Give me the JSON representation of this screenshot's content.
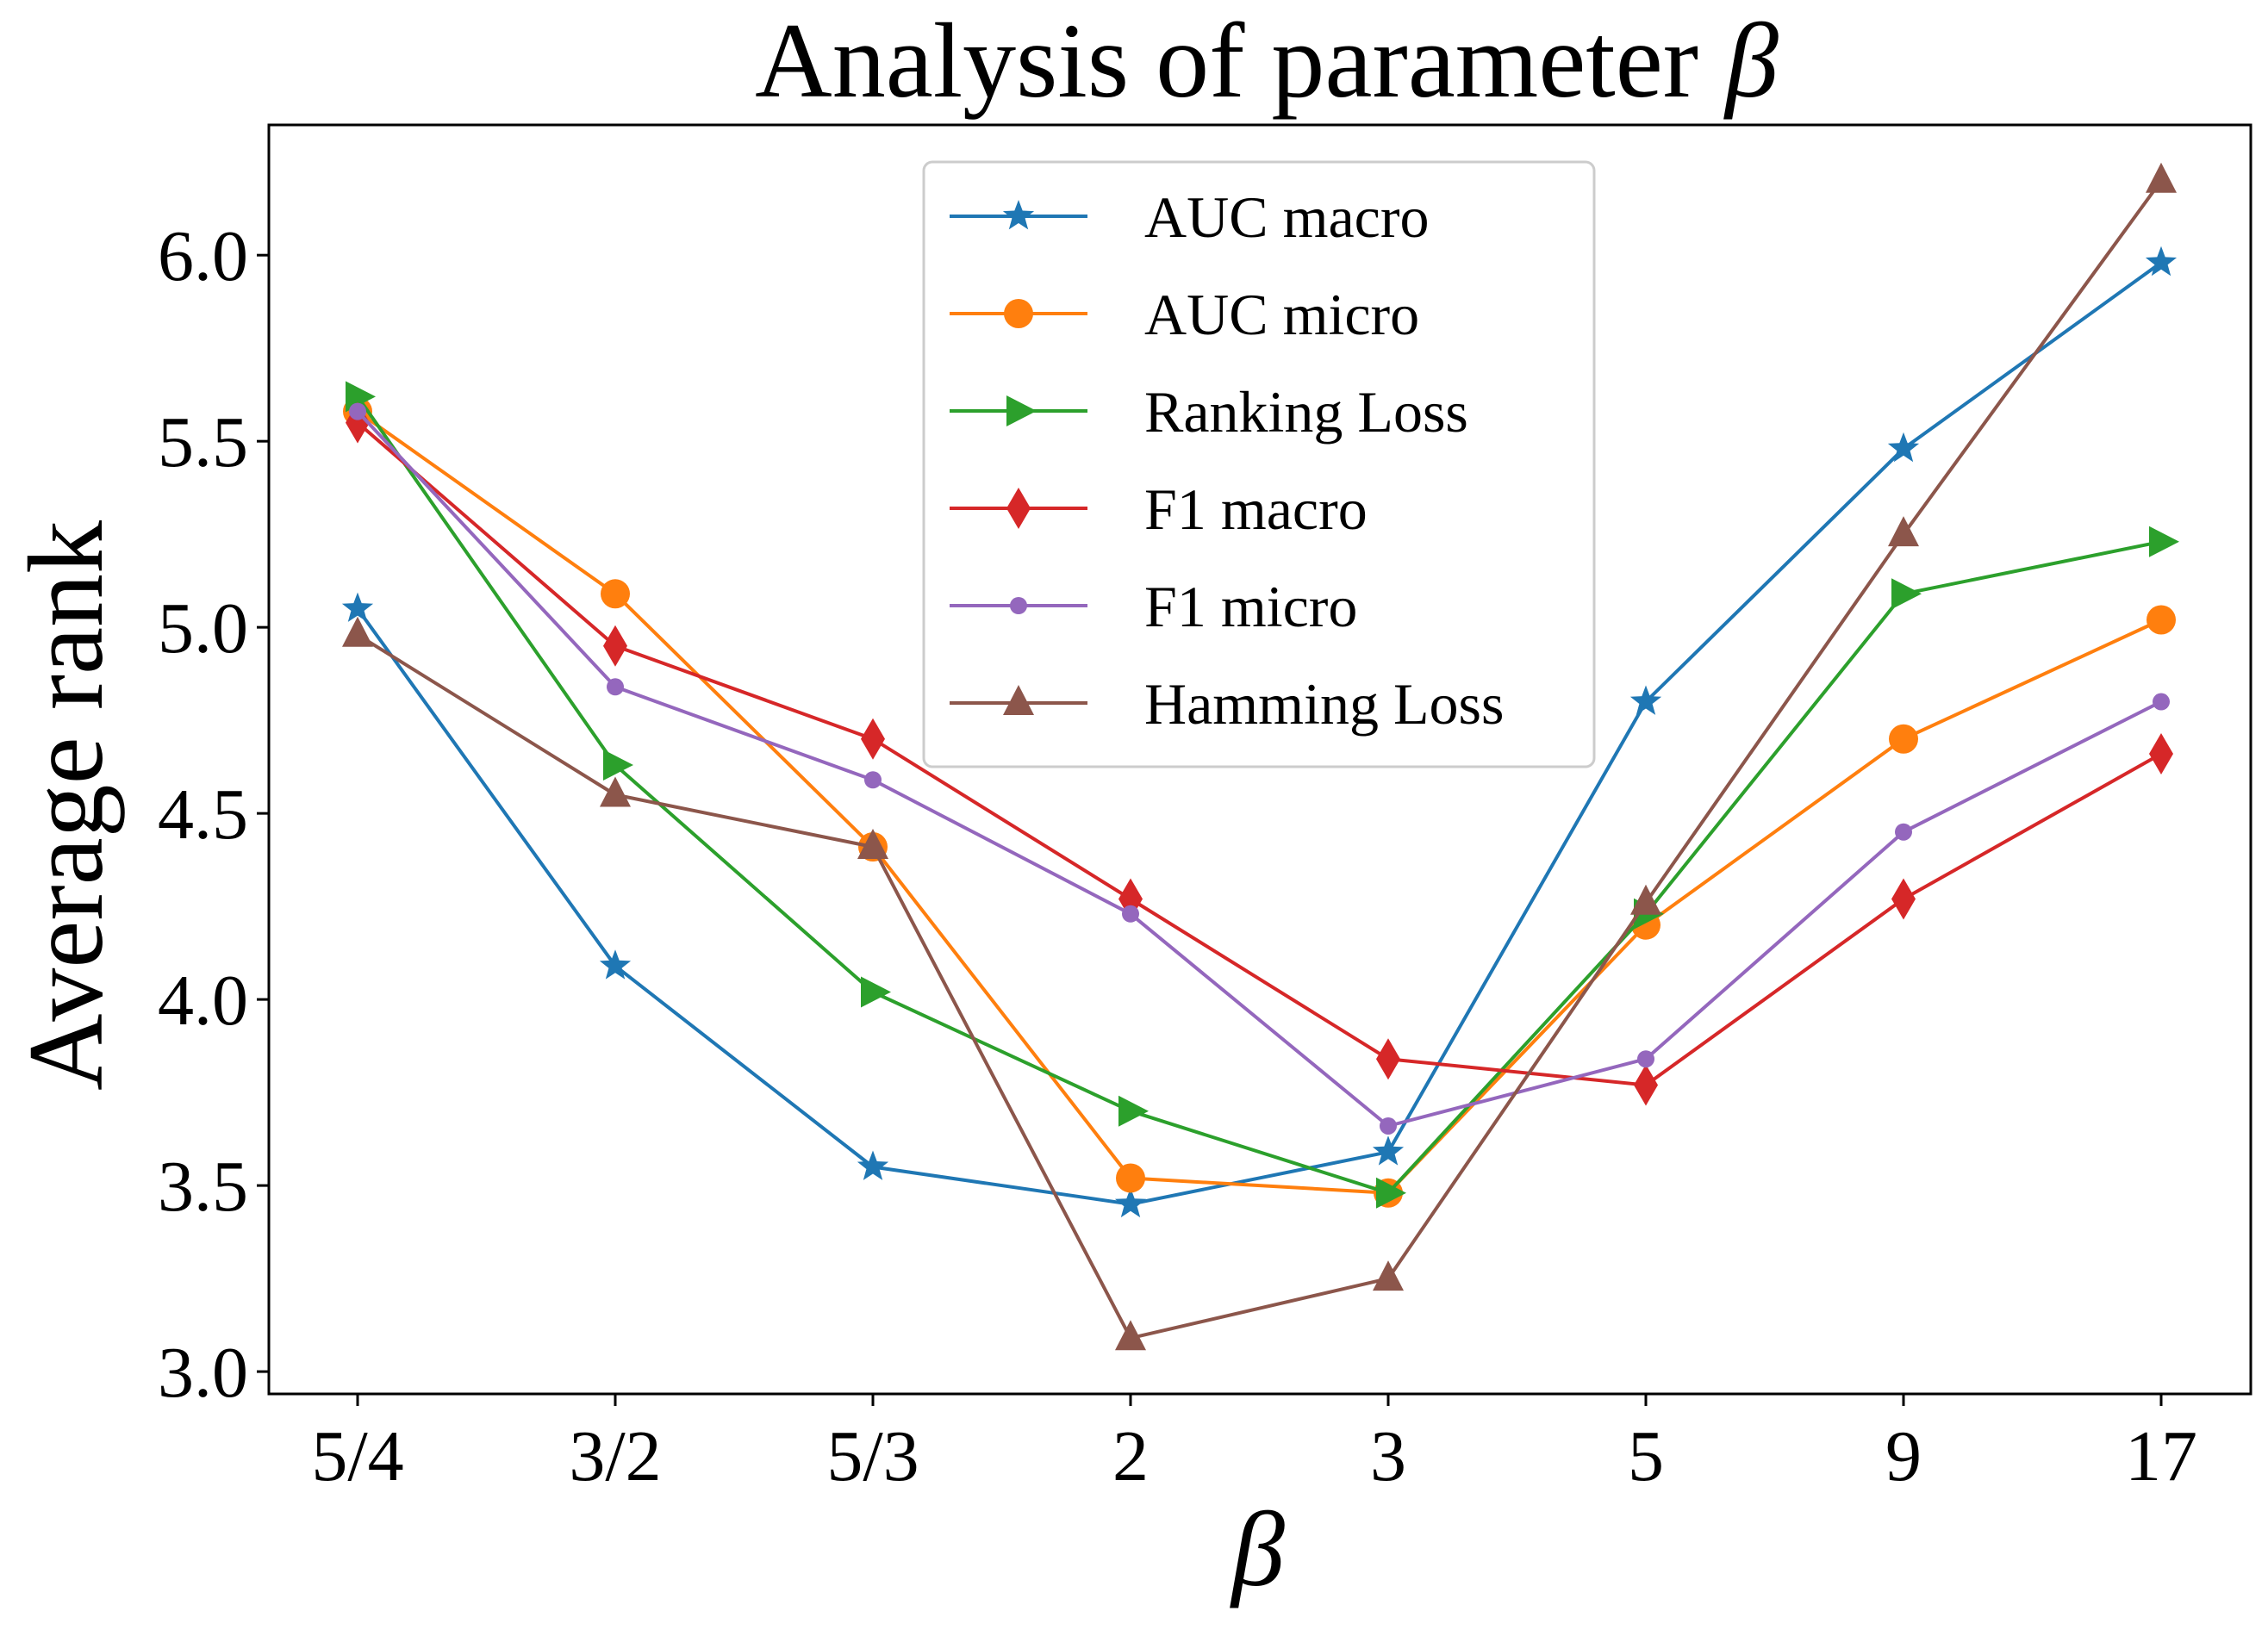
{
  "chart_data": {
    "type": "line",
    "title": "Analysis of parameter",
    "title_symbol": "β",
    "xlabel": "β",
    "ylabel": "Average rank",
    "categories": [
      "5/4",
      "3/2",
      "5/3",
      "2",
      "3",
      "5",
      "9",
      "17"
    ],
    "ylim": [
      2.94,
      6.35
    ],
    "yticks": [
      3.0,
      3.5,
      4.0,
      4.5,
      5.0,
      5.5,
      6.0
    ],
    "ytick_labels": [
      "3.0",
      "3.5",
      "4.0",
      "4.5",
      "5.0",
      "5.5",
      "6.0"
    ],
    "grid": false,
    "legend_position": "top-center",
    "series": [
      {
        "name": "AUC macro",
        "color": "#1f77b4",
        "marker": "star",
        "values": [
          5.05,
          4.09,
          3.55,
          3.45,
          3.59,
          4.8,
          5.48,
          5.98
        ]
      },
      {
        "name": "AUC micro",
        "color": "#ff7f0e",
        "marker": "circle",
        "values": [
          5.58,
          5.09,
          4.41,
          3.52,
          3.48,
          4.2,
          4.7,
          5.02
        ]
      },
      {
        "name": "Ranking Loss",
        "color": "#2ca02c",
        "marker": "triangle-right",
        "values": [
          5.62,
          4.63,
          4.02,
          3.7,
          3.48,
          4.23,
          5.09,
          5.23
        ]
      },
      {
        "name": "F1 macro",
        "color": "#d62728",
        "marker": "diamond",
        "values": [
          5.55,
          4.95,
          4.7,
          4.27,
          3.84,
          3.77,
          4.27,
          4.66
        ]
      },
      {
        "name": "F1 micro",
        "color": "#9467bd",
        "marker": "small-circle",
        "values": [
          5.58,
          4.84,
          4.59,
          4.23,
          3.66,
          3.84,
          4.45,
          4.8
        ]
      },
      {
        "name": "Hamming Loss",
        "color": "#8c564b",
        "marker": "triangle-up",
        "values": [
          4.98,
          4.55,
          4.41,
          3.09,
          3.25,
          4.26,
          5.25,
          6.2
        ]
      }
    ]
  }
}
